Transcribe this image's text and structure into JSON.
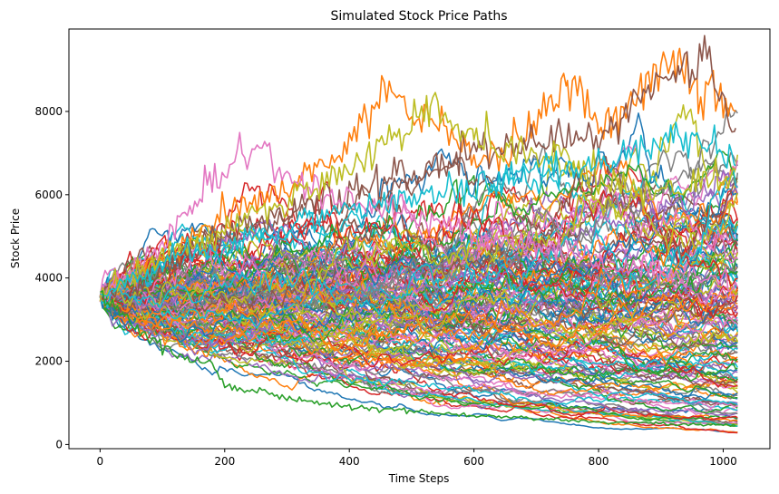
{
  "chart_data": {
    "type": "line",
    "title": "Simulated Stock Price Paths",
    "xlabel": "Time Steps",
    "ylabel": "Stock Price",
    "xlim": [
      -50,
      1075
    ],
    "ylim": [
      -100,
      9980
    ],
    "x_ticks": [
      {
        "value": 0,
        "label": "0"
      },
      {
        "value": 200,
        "label": "200"
      },
      {
        "value": 400,
        "label": "400"
      },
      {
        "value": 600,
        "label": "600"
      },
      {
        "value": 800,
        "label": "800"
      },
      {
        "value": 1000,
        "label": "1000"
      }
    ],
    "y_ticks": [
      {
        "value": 0,
        "label": "0"
      },
      {
        "value": 2000,
        "label": "2000"
      },
      {
        "value": 4000,
        "label": "4000"
      },
      {
        "value": 6000,
        "label": "6000"
      },
      {
        "value": 8000,
        "label": "8000"
      }
    ],
    "grid": false,
    "legend": "none",
    "n_steps": 1024,
    "start_value": 3550,
    "min_final_value": 300,
    "max_value": 9500,
    "n_paths_shown": 150,
    "color_cycle": [
      "#1f77b4",
      "#ff7f0e",
      "#2ca02c",
      "#d62728",
      "#9467bd",
      "#8c564b",
      "#e377c2",
      "#7f7f7f",
      "#bcbd22",
      "#17becf"
    ],
    "highlighted_series": [
      {
        "color": "#ff7f0e",
        "x": [
          0,
          100,
          200,
          300,
          400,
          460,
          500,
          560,
          600,
          680,
          750,
          800,
          860,
          930,
          960,
          1020
        ],
        "values": [
          3550,
          4600,
          5500,
          6200,
          7200,
          8700,
          7900,
          7600,
          6800,
          7300,
          8800,
          7700,
          8300,
          9500,
          8800,
          8000
        ]
      },
      {
        "color": "#8c564b",
        "x": [
          0,
          100,
          200,
          300,
          400,
          500,
          600,
          700,
          800,
          860,
          930,
          970,
          1020
        ],
        "values": [
          3550,
          4200,
          5000,
          5600,
          6100,
          6500,
          7000,
          7300,
          7400,
          8300,
          8900,
          9350,
          7600
        ]
      },
      {
        "color": "#e377c2",
        "x": [
          0,
          100,
          180,
          220,
          260,
          300,
          400,
          500,
          600,
          700,
          800,
          900,
          1020
        ],
        "values": [
          3550,
          4800,
          6400,
          6900,
          7100,
          6300,
          5800,
          5500,
          5000,
          4800,
          4400,
          4100,
          3900
        ]
      },
      {
        "color": "#bcbd22",
        "x": [
          0,
          100,
          200,
          300,
          400,
          500,
          530,
          600,
          700,
          800,
          900,
          1020
        ],
        "values": [
          3550,
          4500,
          5200,
          5800,
          6600,
          7800,
          8200,
          7400,
          6900,
          6400,
          6000,
          6600
        ]
      },
      {
        "color": "#17becf",
        "x": [
          0,
          100,
          200,
          300,
          400,
          500,
          600,
          700,
          800,
          900,
          950,
          1020
        ],
        "values": [
          3550,
          4400,
          4800,
          5200,
          5600,
          5900,
          6200,
          6500,
          6700,
          7300,
          7400,
          6700
        ]
      },
      {
        "color": "#2ca02c",
        "x": [
          0,
          100,
          180,
          200,
          260,
          300,
          400,
          600,
          800,
          1020
        ],
        "values": [
          3550,
          2300,
          1900,
          1400,
          1300,
          1100,
          900,
          700,
          550,
          450
        ]
      }
    ]
  }
}
